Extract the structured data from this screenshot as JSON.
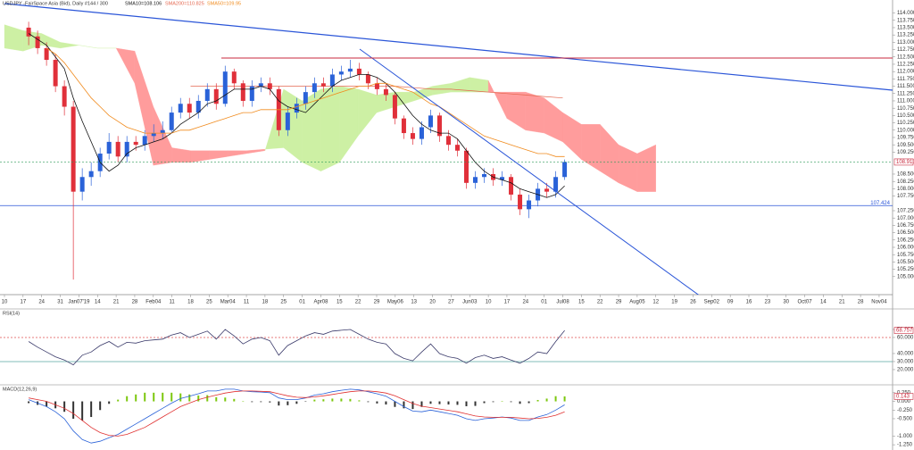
{
  "header": {
    "title": "USDJPY -FairSpace Asia (Bid), Daily  #144 / 300",
    "sma_fast": "SMA10=108.106",
    "sma_long": "SMA200=110.825",
    "sma_slow": "SMA50=109.95"
  },
  "chart_data": [
    {
      "type": "candlestick",
      "open": [
        113.5,
        113.2,
        112.8,
        112.4,
        111.5,
        110.8,
        107.9,
        108.4,
        108.6,
        109.2,
        109.6,
        109.1,
        109.6,
        109.5,
        109.8,
        109.9,
        110.0,
        110.6,
        110.9,
        110.6,
        111.0,
        111.4,
        110.9,
        112.0,
        111.6,
        111.0,
        111.5,
        111.6,
        111.4,
        110.0,
        110.6,
        110.9,
        111.3,
        111.6,
        111.5,
        111.9,
        112.0,
        112.1,
        111.9,
        111.6,
        111.4,
        111.2,
        110.4,
        109.9,
        109.7,
        110.1,
        110.5,
        109.8,
        109.5,
        109.3,
        108.2,
        108.4,
        108.5,
        108.3,
        108.4,
        107.8,
        107.3,
        107.6,
        108.0,
        107.9,
        108.4
      ],
      "high": [
        113.7,
        113.4,
        113.0,
        112.6,
        111.7,
        111.0,
        108.7,
        108.9,
        109.4,
        109.9,
        109.8,
        109.8,
        109.8,
        110.0,
        110.2,
        110.3,
        110.8,
        111.1,
        111.1,
        111.2,
        111.6,
        111.6,
        112.2,
        112.1,
        111.7,
        111.7,
        111.8,
        111.8,
        111.5,
        110.8,
        111.1,
        111.5,
        111.8,
        111.8,
        112.1,
        112.2,
        112.4,
        112.3,
        112.0,
        111.8,
        111.6,
        111.3,
        110.5,
        110.1,
        110.3,
        110.7,
        110.6,
        110.0,
        109.7,
        109.4,
        108.6,
        108.7,
        108.7,
        108.6,
        108.5,
        108.0,
        107.8,
        108.2,
        108.2,
        108.6,
        109.0
      ],
      "low": [
        112.9,
        112.6,
        112.2,
        111.3,
        110.5,
        104.9,
        107.6,
        108.1,
        108.4,
        109.0,
        108.9,
        108.9,
        109.3,
        109.3,
        109.6,
        109.7,
        109.9,
        110.4,
        110.4,
        110.4,
        110.8,
        110.7,
        110.8,
        111.4,
        110.8,
        110.8,
        111.3,
        111.2,
        109.8,
        109.8,
        110.4,
        110.7,
        111.1,
        111.3,
        111.3,
        111.7,
        111.8,
        111.7,
        111.4,
        111.2,
        111.0,
        110.2,
        109.7,
        109.5,
        109.5,
        109.9,
        109.6,
        109.3,
        109.1,
        108.0,
        108.0,
        108.2,
        108.1,
        108.1,
        107.6,
        107.1,
        107.0,
        107.4,
        107.7,
        107.7,
        108.3
      ],
      "close": [
        113.2,
        112.8,
        112.4,
        111.5,
        110.8,
        107.9,
        108.4,
        108.6,
        109.2,
        109.6,
        109.1,
        109.6,
        109.5,
        109.8,
        109.9,
        110.0,
        110.6,
        110.9,
        110.6,
        111.0,
        111.4,
        110.9,
        112.0,
        111.6,
        111.0,
        111.5,
        111.6,
        111.4,
        110.0,
        110.6,
        110.9,
        111.3,
        111.6,
        111.5,
        111.9,
        112.0,
        112.1,
        111.9,
        111.6,
        111.4,
        111.2,
        110.4,
        109.9,
        109.7,
        110.1,
        110.5,
        109.8,
        109.5,
        109.3,
        108.2,
        108.4,
        108.5,
        108.3,
        108.4,
        107.8,
        107.3,
        107.6,
        108.0,
        107.9,
        108.4,
        108.913
      ],
      "up_color": "#2a62d8",
      "down_color": "#e0303a",
      "series": [
        {
          "color": "#111111",
          "values": [
            113.3,
            113.1,
            112.9,
            112.5,
            112.1,
            111.1,
            110.3,
            109.6,
            108.9,
            108.6,
            108.8,
            109.2,
            109.4,
            109.5,
            109.6,
            109.7,
            109.9,
            110.2,
            110.4,
            110.6,
            110.9,
            111.0,
            111.2,
            111.4,
            111.4,
            111.4,
            111.5,
            111.4,
            111.0,
            110.8,
            110.7,
            110.6,
            110.9,
            111.2,
            111.5,
            111.7,
            111.8,
            111.9,
            111.9,
            111.8,
            111.6,
            111.3,
            110.9,
            110.5,
            110.2,
            110.0,
            109.9,
            109.9,
            109.7,
            109.3,
            108.9,
            108.6,
            108.4,
            108.3,
            108.2,
            108.0,
            107.9,
            107.8,
            107.7,
            107.8,
            108.1
          ]
        },
        {
          "color": "#f08a1c",
          "values": [
            null,
            null,
            112.8,
            112.6,
            112.3,
            111.9,
            111.5,
            111.1,
            110.8,
            110.5,
            110.3,
            110.1,
            110.0,
            109.9,
            109.9,
            109.9,
            109.9,
            110.0,
            110.0,
            110.1,
            110.2,
            110.3,
            110.4,
            110.5,
            110.6,
            110.6,
            110.7,
            110.7,
            110.7,
            110.7,
            110.8,
            110.9,
            111.0,
            111.1,
            111.2,
            111.3,
            111.4,
            111.5,
            111.5,
            111.6,
            111.6,
            111.5,
            111.4,
            111.3,
            111.1,
            110.9,
            110.8,
            110.6,
            110.4,
            110.2,
            110.0,
            109.8,
            109.7,
            109.6,
            109.5,
            109.4,
            109.3,
            109.2,
            109.2,
            109.1,
            109.1
          ]
        }
      ],
      "weekly_series": [
        {
          "color": "#e4664e",
          "values": [
            null,
            null,
            null,
            null,
            null,
            null,
            null,
            null,
            null,
            null,
            111.5,
            111.5,
            111.5,
            111.5,
            111.5,
            111.5,
            111.5,
            111.5,
            111.5,
            111.5,
            111.5,
            111.5,
            111.45,
            111.4,
            111.4,
            111.35,
            111.3,
            111.25,
            111.2,
            111.15,
            111.1,
            null,
            null,
            null,
            null,
            null
          ]
        }
      ],
      "cloud": {
        "span_a": [
          113.6,
          113.4,
          113.3,
          113.0,
          112.9,
          112.8,
          112.8,
          111.6,
          108.8,
          108.9,
          108.9,
          109.0,
          109.1,
          109.2,
          109.3,
          111.4,
          111.0,
          111.4,
          111.5,
          111.4,
          111.2,
          111.3,
          111.3,
          111.5,
          111.6,
          111.8,
          111.7,
          110.4,
          110.0,
          109.9,
          109.6,
          109.0,
          108.6,
          108.2,
          107.9,
          107.9
        ],
        "span_b": [
          112.8,
          112.7,
          112.9,
          112.8,
          112.9,
          112.8,
          112.8,
          112.7,
          110.8,
          109.4,
          109.3,
          109.3,
          109.3,
          109.3,
          109.35,
          109.4,
          108.9,
          108.6,
          108.9,
          109.8,
          110.6,
          110.8,
          111.0,
          111.2,
          111.3,
          111.3,
          111.3,
          111.3,
          111.3,
          111.1,
          110.6,
          110.2,
          110.2,
          109.5,
          109.2,
          109.5
        ],
        "colors": [
          "#cdf0a4",
          "#ff9c9c"
        ]
      },
      "levels": [
        {
          "value": 107.424,
          "color": "#2a55d8"
        }
      ],
      "current_color": "#2e9b5a",
      "ylim": [
        104.75,
        114.2
      ],
      "yticks": [
        {
          "value": 105.0,
          "label": "105.000"
        },
        {
          "value": 105.25,
          "label": "105.250"
        },
        {
          "value": 105.5,
          "label": "105.500"
        },
        {
          "value": 105.75,
          "label": "105.750"
        },
        {
          "value": 106.0,
          "label": "106.000"
        },
        {
          "value": 106.25,
          "label": "106.250"
        },
        {
          "value": 106.5,
          "label": "106.500"
        },
        {
          "value": 106.75,
          "label": "106.750"
        },
        {
          "value": 107.0,
          "label": "107.000"
        },
        {
          "value": 107.25,
          "label": "107.250"
        },
        {
          "value": 107.75,
          "label": "107.750"
        },
        {
          "value": 108.0,
          "label": "108.000"
        },
        {
          "value": 108.25,
          "label": "108.250"
        },
        {
          "value": 108.5,
          "label": "108.500"
        },
        {
          "value": 109.25,
          "label": "109.250"
        },
        {
          "value": 109.5,
          "label": "109.500"
        },
        {
          "value": 109.75,
          "label": "109.750"
        },
        {
          "value": 110.0,
          "label": "110.000"
        },
        {
          "value": 110.25,
          "label": "110.250"
        },
        {
          "value": 110.5,
          "label": "110.500"
        },
        {
          "value": 110.75,
          "label": "110.750"
        },
        {
          "value": 111.0,
          "label": "111.000"
        },
        {
          "value": 111.25,
          "label": "111.250"
        },
        {
          "value": 111.5,
          "label": "111.500"
        },
        {
          "value": 111.75,
          "label": "111.750"
        },
        {
          "value": 112.0,
          "label": "112.000"
        },
        {
          "value": 112.25,
          "label": "112.250"
        },
        {
          "value": 112.5,
          "label": "112.500"
        },
        {
          "value": 112.75,
          "label": "112.750"
        },
        {
          "value": 113.0,
          "label": "113.000"
        },
        {
          "value": 113.25,
          "label": "113.250"
        },
        {
          "value": 113.5,
          "label": "113.500"
        },
        {
          "value": 113.75,
          "label": "113.750"
        },
        {
          "value": 114.0,
          "label": "114.000"
        }
      ],
      "xticks": [
        "10",
        "17",
        "24",
        "31",
        "Jan07'19",
        "14",
        "21",
        "28",
        "Feb04",
        "11",
        "18",
        "25",
        "Mar04",
        "11",
        "18",
        "25",
        "01",
        "Apr08",
        "15",
        "22",
        "29",
        "May06",
        "13",
        "20",
        "27",
        "Jun03",
        "10",
        "17",
        "24",
        "01",
        "Jul08",
        "15",
        "22",
        "29",
        "Aug05",
        "12",
        "19",
        "26",
        "Sep02",
        "09",
        "16",
        "23",
        "30",
        "Oct07",
        "14",
        "21",
        "28",
        "Nov04"
      ]
    },
    {
      "type": "line",
      "title": "RSI(14)",
      "values": [
        55,
        48,
        42,
        36,
        32,
        26,
        38,
        42,
        50,
        55,
        48,
        54,
        53,
        56,
        57,
        58,
        63,
        66,
        60,
        64,
        68,
        58,
        70,
        62,
        52,
        58,
        60,
        56,
        38,
        50,
        56,
        62,
        66,
        64,
        68,
        69,
        70,
        64,
        58,
        54,
        52,
        40,
        34,
        31,
        42,
        52,
        40,
        36,
        34,
        28,
        35,
        38,
        34,
        36,
        32,
        28,
        34,
        42,
        40,
        55,
        68.757
      ],
      "color": "#3a3a6a",
      "ylim": [
        4.4,
        82.2
      ],
      "levels": [
        {
          "value": 60,
          "color": "#e05050"
        },
        {
          "value": 30,
          "color": "#5aa8a0"
        }
      ],
      "yticks": [
        {
          "value": 70,
          "label": "70.000"
        },
        {
          "value": 60,
          "label": "60.000"
        },
        {
          "value": 40,
          "label": "40.000"
        },
        {
          "value": 30,
          "label": "30.000"
        },
        {
          "value": 20,
          "label": "20.000"
        }
      ]
    },
    {
      "type": "macd",
      "title": "MACD(12,26,9)",
      "series": [
        {
          "color": "#2a62d8",
          "values": [
            0.05,
            -0.05,
            -0.15,
            -0.3,
            -0.5,
            -0.85,
            -1.1,
            -1.2,
            -1.15,
            -1.05,
            -0.95,
            -0.8,
            -0.65,
            -0.5,
            -0.35,
            -0.2,
            -0.05,
            0.08,
            0.15,
            0.22,
            0.3,
            0.3,
            0.35,
            0.35,
            0.3,
            0.28,
            0.27,
            0.25,
            0.1,
            0.05,
            0.05,
            0.1,
            0.18,
            0.22,
            0.28,
            0.32,
            0.35,
            0.33,
            0.28,
            0.22,
            0.15,
            0.0,
            -0.15,
            -0.28,
            -0.3,
            -0.25,
            -0.3,
            -0.35,
            -0.4,
            -0.5,
            -0.55,
            -0.5,
            -0.48,
            -0.45,
            -0.48,
            -0.55,
            -0.55,
            -0.45,
            -0.38,
            -0.25,
            -0.1
          ]
        },
        {
          "color": "#e03030",
          "values": [
            0.1,
            0.05,
            0.0,
            -0.1,
            -0.2,
            -0.35,
            -0.55,
            -0.75,
            -0.9,
            -0.98,
            -1.0,
            -0.95,
            -0.85,
            -0.75,
            -0.6,
            -0.45,
            -0.3,
            -0.15,
            -0.05,
            0.05,
            0.12,
            0.18,
            0.24,
            0.28,
            0.3,
            0.3,
            0.29,
            0.28,
            0.22,
            0.16,
            0.12,
            0.11,
            0.13,
            0.16,
            0.2,
            0.24,
            0.28,
            0.3,
            0.3,
            0.28,
            0.24,
            0.16,
            0.05,
            -0.06,
            -0.14,
            -0.18,
            -0.22,
            -0.26,
            -0.3,
            -0.36,
            -0.42,
            -0.45,
            -0.46,
            -0.46,
            -0.46,
            -0.48,
            -0.5,
            -0.49,
            -0.46,
            -0.4,
            -0.3
          ]
        }
      ],
      "histogram": [
        -0.05,
        -0.1,
        -0.15,
        -0.2,
        -0.3,
        -0.5,
        -0.55,
        -0.45,
        -0.25,
        -0.07,
        0.05,
        0.15,
        0.2,
        0.25,
        0.25,
        0.25,
        0.25,
        0.23,
        0.2,
        0.17,
        0.18,
        0.12,
        0.11,
        0.07,
        0.0,
        -0.02,
        -0.02,
        -0.03,
        -0.12,
        -0.11,
        -0.07,
        -0.01,
        0.05,
        0.06,
        0.08,
        0.08,
        0.07,
        0.03,
        -0.02,
        -0.06,
        -0.09,
        -0.16,
        -0.2,
        -0.22,
        -0.16,
        -0.07,
        -0.08,
        -0.09,
        -0.1,
        -0.14,
        -0.13,
        -0.05,
        -0.02,
        0.01,
        -0.02,
        -0.07,
        -0.05,
        0.04,
        0.08,
        0.15,
        0.143
      ],
      "hist_colors": [
        "#7cc70e",
        "#333333"
      ],
      "ylim": [
        -1.35,
        0.4
      ],
      "yticks": [
        {
          "value": 0.25,
          "label": "0.250"
        },
        {
          "value": 0,
          "label": "0.000"
        },
        {
          "value": -0.25,
          "label": "-0.250"
        },
        {
          "value": -0.5,
          "label": "-0.500"
        },
        {
          "value": -1,
          "label": "-1.000"
        },
        {
          "value": -1.25,
          "label": "-1.250"
        }
      ]
    }
  ]
}
